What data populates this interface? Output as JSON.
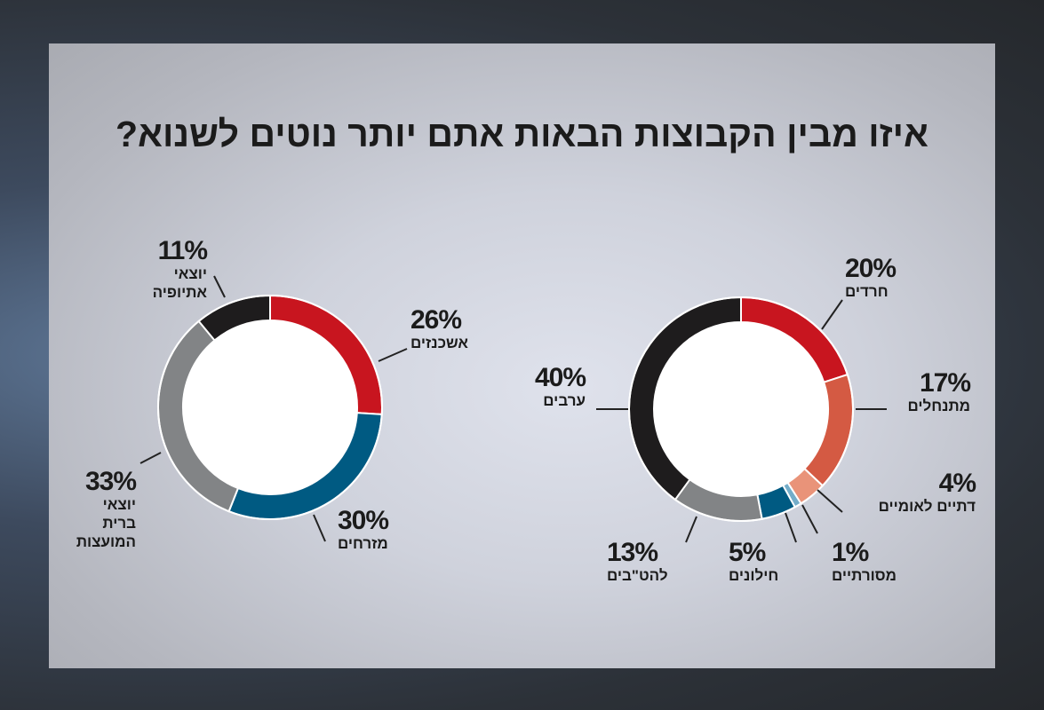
{
  "title": "איזו מבין הקבוצות הבאות אתם יותר נוטים לשנוא?",
  "chart_data": [
    {
      "type": "pie",
      "donut": true,
      "categories": [
        "אשכנזים",
        "מזרחים",
        "יוצאי ברית המועצות",
        "יוצאי אתיופיה"
      ],
      "values": [
        26,
        30,
        33,
        11
      ],
      "value_labels": [
        "26%",
        "30%",
        "33%",
        "11%"
      ],
      "colors": [
        "#c8151f",
        "#005a82",
        "#828486",
        "#1e1c1d"
      ]
    },
    {
      "type": "pie",
      "donut": true,
      "categories": [
        "חרדים",
        "מתנחלים",
        "דתיים לאומיים",
        "מסורתיים",
        "חילונים",
        "להט\"בים",
        "ערבים"
      ],
      "values": [
        20,
        17,
        4,
        1,
        5,
        13,
        40
      ],
      "value_labels": [
        "20%",
        "17%",
        "4%",
        "1%",
        "5%",
        "13%",
        "40%"
      ],
      "colors": [
        "#c8151f",
        "#d45a43",
        "#e99379",
        "#74adc9",
        "#005a82",
        "#828486",
        "#1e1c1d"
      ]
    }
  ],
  "labels": {
    "left": [
      {
        "pct": "26%",
        "name": "אשכנזים"
      },
      {
        "pct": "30%",
        "name": "מזרחים"
      },
      {
        "pct": "33%",
        "name": "יוצאי\nברית\nהמועצות"
      },
      {
        "pct": "11%",
        "name": "יוצאי\nאתיופיה"
      }
    ],
    "right": [
      {
        "pct": "20%",
        "name": "חרדים"
      },
      {
        "pct": "17%",
        "name": "מתנחלים"
      },
      {
        "pct": "4%",
        "name": "דתיים לאומיים"
      },
      {
        "pct": "1%",
        "name": "מסורתיים"
      },
      {
        "pct": "5%",
        "name": "חילונים"
      },
      {
        "pct": "13%",
        "name": "להט\"בים"
      },
      {
        "pct": "40%",
        "name": "ערבים"
      }
    ]
  }
}
